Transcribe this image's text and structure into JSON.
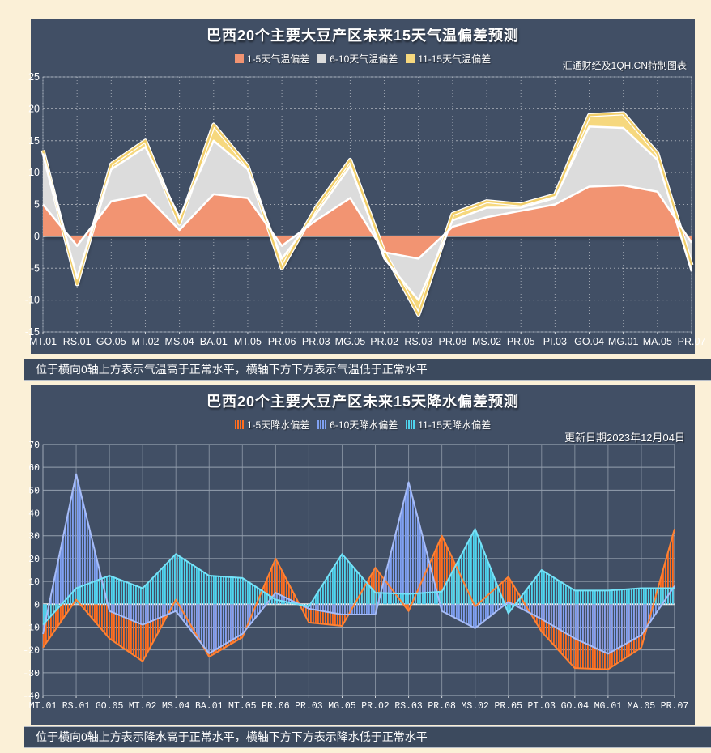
{
  "page": {
    "background": "#FBF0D7",
    "panel_color": "#414F65"
  },
  "chart_data": [
    {
      "type": "area",
      "title": "巴西20个主要大豆产区未来15天气温偏差预测",
      "note": "汇通财经及1QH.CN特制图表",
      "caption": "位于横向0轴上方表示气温高于正常水平，横轴下方下方表示气温低于正常水平",
      "legend_position": "top-center",
      "grid": "dotted-white",
      "hatch": false,
      "ylim": [
        -15,
        25
      ],
      "ytick": 5,
      "baseline": 0,
      "categories": [
        "MT.01",
        "RS.01",
        "GO.05",
        "MT.02",
        "MS.04",
        "BA.01",
        "MT.05",
        "PR.06",
        "PR.03",
        "MG.05",
        "PR.02",
        "RS.03",
        "PR.08",
        "MS.02",
        "PR.05",
        "PI.03",
        "GO.04",
        "MG.01",
        "MA.05",
        "PR.07"
      ],
      "draw_order": [
        2,
        1,
        0
      ],
      "series": [
        {
          "name": "1-5天气温偏差",
          "color": "#F29472",
          "line": "#FFFFFF",
          "values": [
            5,
            -1.5,
            5.5,
            6.5,
            1,
            6.6,
            6,
            -1.5,
            2.5,
            6,
            -2.5,
            -3.5,
            1.5,
            3,
            4,
            5,
            7.8,
            8,
            7,
            -1
          ]
        },
        {
          "name": "6-10天气温偏差",
          "color": "#DCDCDC",
          "line": "#FFFFFF",
          "values": [
            13,
            -6.5,
            10.5,
            14,
            3,
            15,
            10.5,
            -3.5,
            3.5,
            11,
            -3.5,
            -10,
            2.5,
            4.5,
            4.5,
            6,
            17.2,
            17,
            12,
            -5.5
          ]
        },
        {
          "name": "11-15天气温偏差",
          "color": "#F6D87E",
          "line": "#F2CF6B",
          "halo": "#FFFFFF",
          "values": [
            13.5,
            -7.5,
            11.3,
            15,
            2,
            17.5,
            11,
            -5,
            4.5,
            12,
            -2.5,
            -12.3,
            3.5,
            5.5,
            5,
            6.5,
            19,
            19.3,
            13,
            -4.5
          ]
        }
      ]
    },
    {
      "type": "area-hatched",
      "title": "巴西20个主要大豆产区未来15天降水偏差预测",
      "note": "更新日期2023年12月04日",
      "caption": "位于横向0轴上方表示降水高于正常水平，横轴下方下方表示降水低于正常水平",
      "legend_position": "top-center",
      "grid": "solid-gray",
      "hatch": true,
      "ylim": [
        -40,
        70
      ],
      "ytick": 10,
      "baseline": 0,
      "categories": [
        "MT.01",
        "RS.01",
        "GO.05",
        "MT.02",
        "MS.04",
        "BA.01",
        "MT.05",
        "PR.06",
        "PR.03",
        "MG.05",
        "PR.02",
        "RS.03",
        "PR.08",
        "MS.02",
        "PR.05",
        "PI.03",
        "GO.04",
        "MG.01",
        "MA.05",
        "PR.07"
      ],
      "draw_order": [
        0,
        1,
        2
      ],
      "series": [
        {
          "name": "1-5天降水偏差",
          "color": "#FF6D1F",
          "line": "#FF8132",
          "values": [
            -19,
            2,
            -15,
            -25,
            2,
            -23,
            -14.5,
            20,
            -8,
            -9.5,
            16,
            -3,
            30,
            -1,
            12,
            -12,
            -28,
            -28.5,
            -19,
            33
          ]
        },
        {
          "name": "6-10天降水偏差",
          "color": "#7FA0F2",
          "line": "#A6BCF8",
          "values": [
            -13,
            57,
            -3,
            -9,
            -3,
            -21.5,
            -13,
            5,
            -2,
            -4.5,
            -4.5,
            53.5,
            -3,
            -10.5,
            1,
            -6.5,
            -15,
            -21.7,
            -13.5,
            8
          ]
        },
        {
          "name": "11-15天降水偏差",
          "color": "#4FD4EE",
          "line": "#75E2F8",
          "values": [
            -9,
            7,
            12.5,
            7,
            22,
            12.5,
            11.5,
            2,
            -1,
            22,
            5,
            4.5,
            5.5,
            33,
            -4,
            15,
            6,
            6,
            7,
            7
          ]
        }
      ]
    }
  ]
}
